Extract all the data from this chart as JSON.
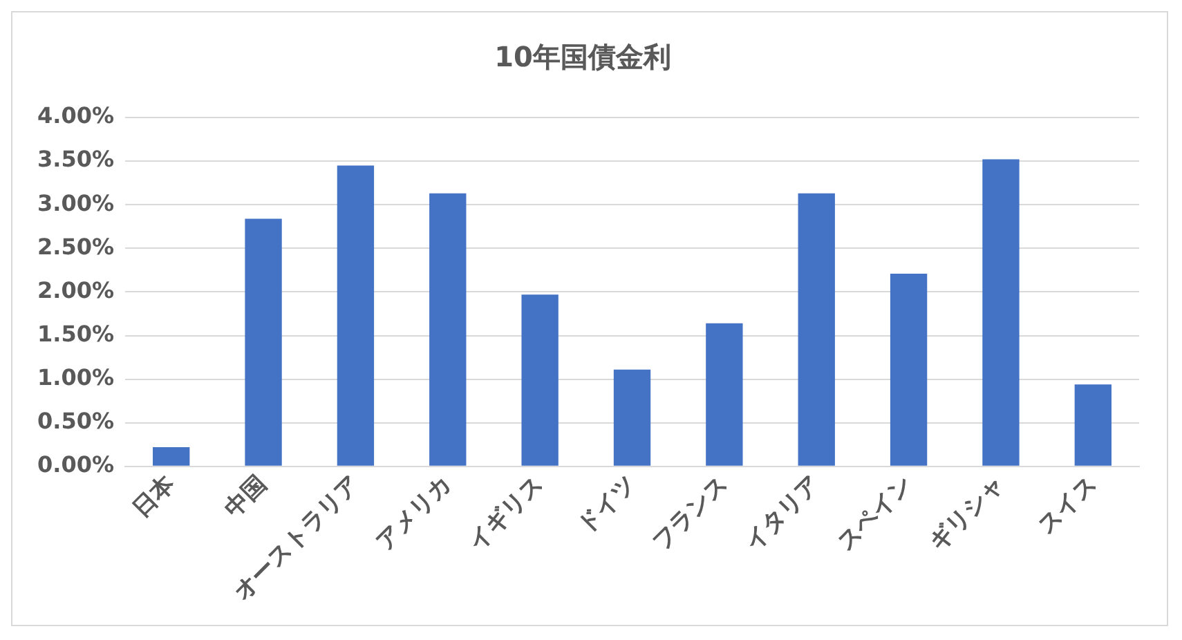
{
  "chart_data": {
    "type": "bar",
    "title": "10年国債金利",
    "categories": [
      "日本",
      "中国",
      "オーストラリア",
      "アメリカ",
      "イギリス",
      "ドイツ",
      "フランス",
      "イタリア",
      "スペイン",
      "ギリシャ",
      "スイス"
    ],
    "values": [
      0.22,
      2.84,
      3.45,
      3.13,
      1.97,
      1.11,
      1.64,
      3.13,
      2.21,
      3.52,
      0.94
    ],
    "color": "#4472c4",
    "ylim": [
      0,
      4
    ],
    "yticks": [
      {
        "value": 0,
        "label": "0.00%"
      },
      {
        "value": 0.5,
        "label": "0.50%"
      },
      {
        "value": 1,
        "label": "1.00%"
      },
      {
        "value": 1.5,
        "label": "1.50%"
      },
      {
        "value": 2,
        "label": "2.00%"
      },
      {
        "value": 2.5,
        "label": "2.50%"
      },
      {
        "value": 3,
        "label": "3.00%"
      },
      {
        "value": 3.5,
        "label": "3.50%"
      },
      {
        "value": 4,
        "label": "4.00%"
      }
    ],
    "grid": "y",
    "legend": false
  }
}
